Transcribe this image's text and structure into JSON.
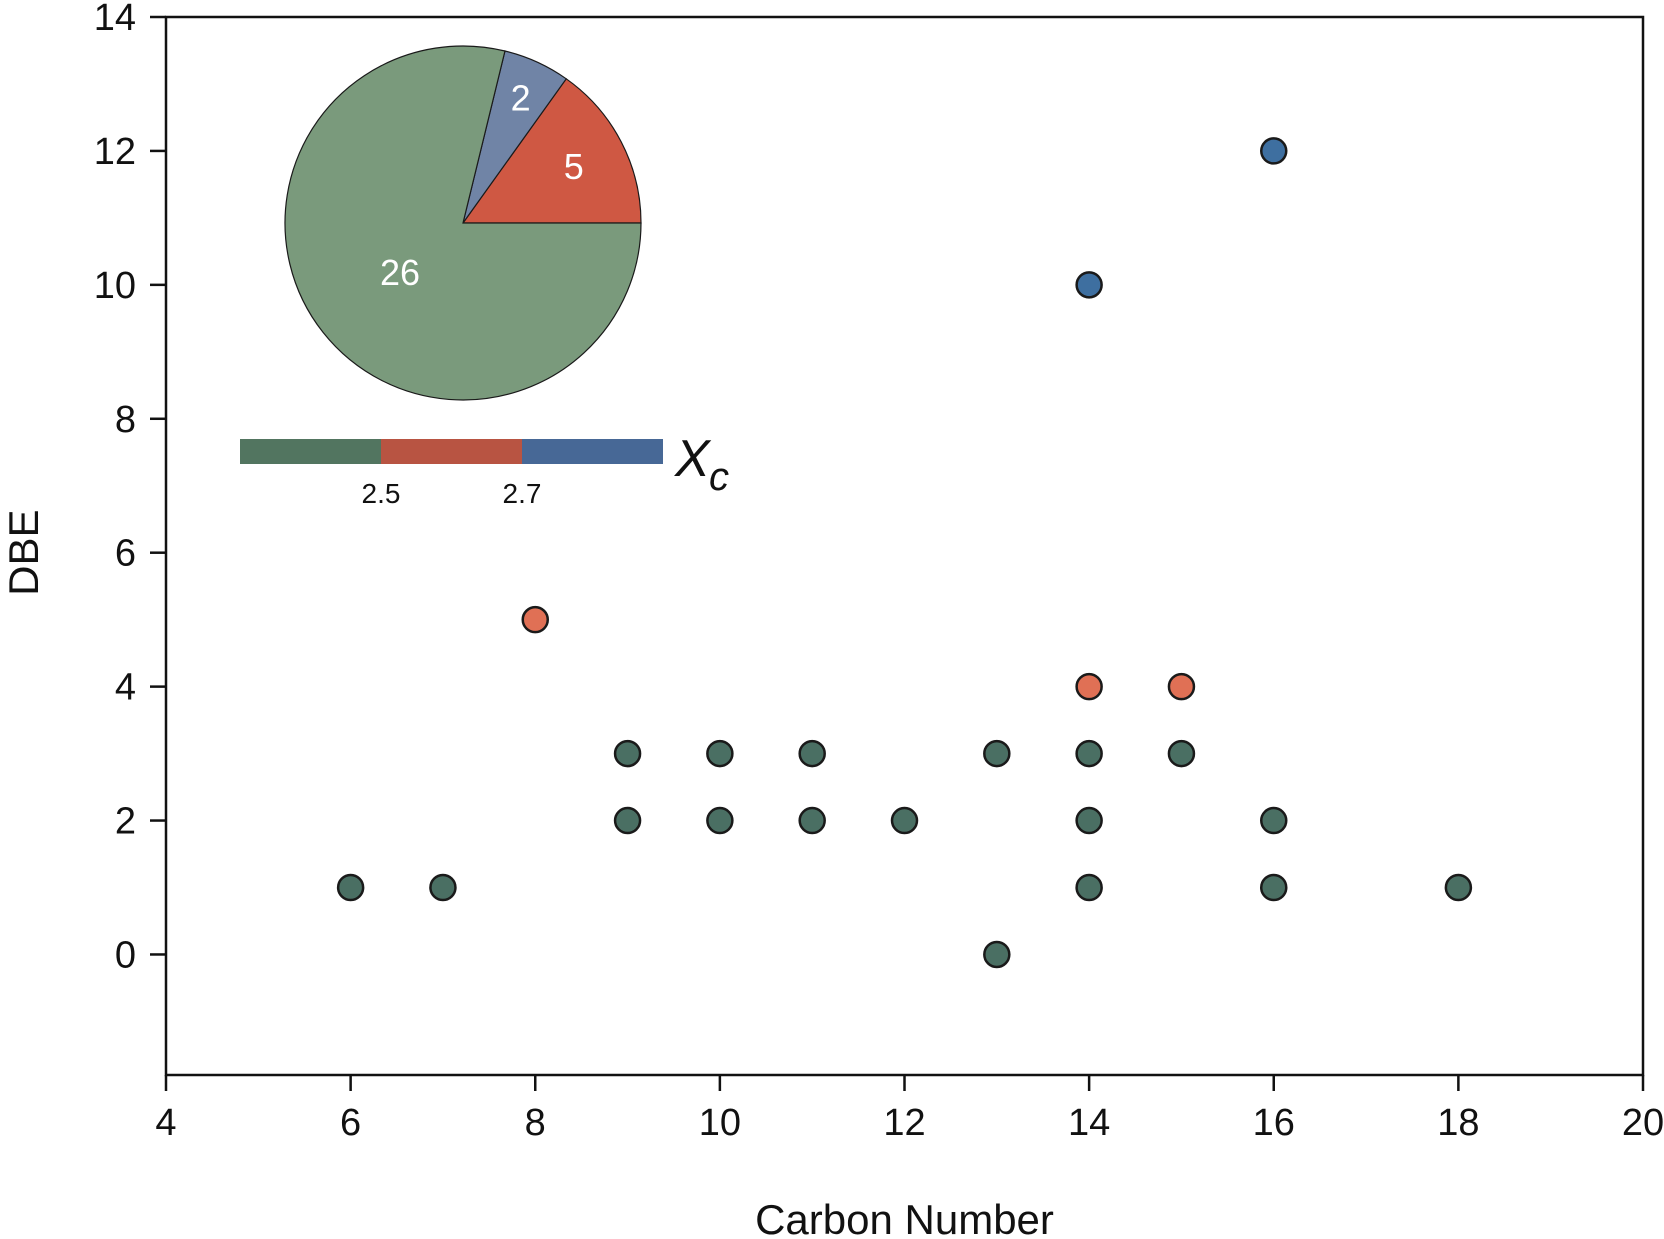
{
  "chart_data": {
    "type": "scatter",
    "xlabel": "Carbon Number",
    "ylabel": "DBE",
    "xlim": [
      4,
      20
    ],
    "ylim": [
      -1.8,
      14
    ],
    "xticks": [
      "4",
      "6",
      "8",
      "10",
      "12",
      "14",
      "16",
      "18",
      "20"
    ],
    "yticks": [
      "0",
      "2",
      "4",
      "6",
      "8",
      "10",
      "12",
      "14"
    ],
    "grid": false,
    "colors": {
      "green": "#4a6f63",
      "orange": "#e07055",
      "blue": "#3e6fa0"
    },
    "points": [
      {
        "x": 6,
        "y": 1,
        "group": "green"
      },
      {
        "x": 7,
        "y": 1,
        "group": "green"
      },
      {
        "x": 8,
        "y": 5,
        "group": "orange"
      },
      {
        "x": 9,
        "y": 3,
        "group": "green"
      },
      {
        "x": 9,
        "y": 2,
        "group": "green"
      },
      {
        "x": 10,
        "y": 3,
        "group": "green"
      },
      {
        "x": 10,
        "y": 2,
        "group": "green"
      },
      {
        "x": 11,
        "y": 3,
        "group": "green"
      },
      {
        "x": 11,
        "y": 2,
        "group": "green"
      },
      {
        "x": 12,
        "y": 2,
        "group": "green"
      },
      {
        "x": 13,
        "y": 3,
        "group": "green"
      },
      {
        "x": 13,
        "y": 0,
        "group": "green"
      },
      {
        "x": 14,
        "y": 10,
        "group": "blue"
      },
      {
        "x": 14,
        "y": 4,
        "group": "orange"
      },
      {
        "x": 14,
        "y": 3,
        "group": "green"
      },
      {
        "x": 14,
        "y": 2,
        "group": "green"
      },
      {
        "x": 14,
        "y": 1,
        "group": "green"
      },
      {
        "x": 15,
        "y": 4,
        "group": "orange"
      },
      {
        "x": 15,
        "y": 3,
        "group": "green"
      },
      {
        "x": 16,
        "y": 12,
        "group": "blue"
      },
      {
        "x": 16,
        "y": 2,
        "group": "green"
      },
      {
        "x": 16,
        "y": 1,
        "group": "green"
      },
      {
        "x": 18,
        "y": 1,
        "group": "green"
      }
    ],
    "inset_pie": {
      "type": "pie",
      "slices": [
        {
          "label": "26",
          "value": 26,
          "color": "#7a9a7c"
        },
        {
          "label": "2",
          "value": 2,
          "color": "#7084a6"
        },
        {
          "label": "5",
          "value": 5,
          "color": "#cf5843"
        }
      ]
    },
    "colorbar": {
      "title": "X",
      "subscript": "c",
      "segments": [
        "#527560",
        "#b85442",
        "#476896"
      ],
      "tick_labels": [
        "2.5",
        "2.7"
      ]
    }
  }
}
